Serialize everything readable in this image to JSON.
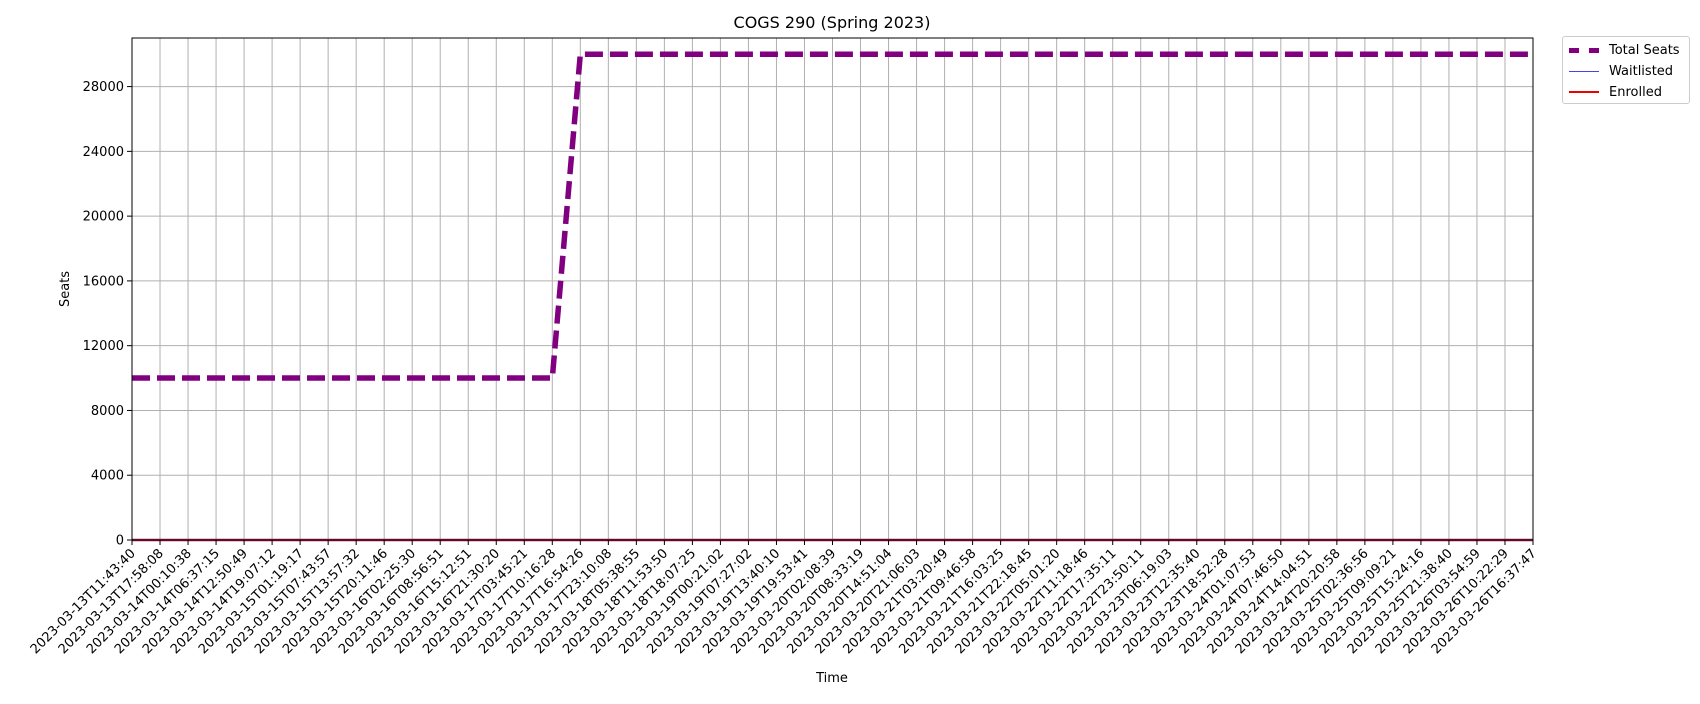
{
  "chart_data": {
    "type": "line",
    "title": "COGS 290 (Spring 2023)",
    "xlabel": "Time",
    "ylabel": "Seats",
    "ylim": [
      0,
      31000
    ],
    "yticks": [
      0,
      4000,
      8000,
      12000,
      16000,
      20000,
      24000,
      28000
    ],
    "grid": true,
    "legend_position": "outside top-right",
    "x": [
      "2023-03-13T11:43:40",
      "2023-03-13T17:58:08",
      "2023-03-14T00:10:38",
      "2023-03-14T06:37:15",
      "2023-03-14T12:50:49",
      "2023-03-14T19:07:12",
      "2023-03-15T01:19:17",
      "2023-03-15T07:43:57",
      "2023-03-15T13:57:32",
      "2023-03-15T20:11:46",
      "2023-03-16T02:25:30",
      "2023-03-16T08:56:51",
      "2023-03-16T15:12:51",
      "2023-03-16T21:30:20",
      "2023-03-17T03:45:21",
      "2023-03-17T10:16:28",
      "2023-03-17T16:54:26",
      "2023-03-17T23:10:08",
      "2023-03-18T05:38:55",
      "2023-03-18T11:53:50",
      "2023-03-18T18:07:25",
      "2023-03-19T00:21:02",
      "2023-03-19T07:27:02",
      "2023-03-19T13:40:10",
      "2023-03-19T19:53:41",
      "2023-03-20T02:08:39",
      "2023-03-20T08:33:19",
      "2023-03-20T14:51:04",
      "2023-03-20T21:06:03",
      "2023-03-21T03:20:49",
      "2023-03-21T09:46:58",
      "2023-03-21T16:03:25",
      "2023-03-21T22:18:45",
      "2023-03-22T05:01:20",
      "2023-03-22T11:18:46",
      "2023-03-22T17:35:11",
      "2023-03-22T23:50:11",
      "2023-03-23T06:19:03",
      "2023-03-23T12:35:40",
      "2023-03-23T18:52:28",
      "2023-03-24T01:07:53",
      "2023-03-24T07:46:50",
      "2023-03-24T14:04:51",
      "2023-03-24T20:20:58",
      "2023-03-25T02:36:56",
      "2023-03-25T09:09:21",
      "2023-03-25T15:24:16",
      "2023-03-25T21:38:40",
      "2023-03-26T03:54:59",
      "2023-03-26T10:22:29",
      "2023-03-26T16:37:47"
    ],
    "series": [
      {
        "name": "Total Seats",
        "color": "#800080",
        "style": "dashed",
        "values": [
          10000,
          10000,
          10000,
          10000,
          10000,
          10000,
          10000,
          10000,
          10000,
          10000,
          10000,
          10000,
          10000,
          10000,
          10000,
          10000,
          30000,
          30000,
          30000,
          30000,
          30000,
          30000,
          30000,
          30000,
          30000,
          30000,
          30000,
          30000,
          30000,
          30000,
          30000,
          30000,
          30000,
          30000,
          30000,
          30000,
          30000,
          30000,
          30000,
          30000,
          30000,
          30000,
          30000,
          30000,
          30000,
          30000,
          30000,
          30000,
          30000,
          30000,
          30000
        ]
      },
      {
        "name": "Waitlisted",
        "color": "#4444ee",
        "style": "solid",
        "values": [
          0,
          0,
          0,
          0,
          0,
          0,
          0,
          0,
          0,
          0,
          0,
          0,
          0,
          0,
          0,
          0,
          0,
          0,
          0,
          0,
          0,
          0,
          0,
          0,
          0,
          0,
          0,
          0,
          0,
          0,
          0,
          0,
          0,
          0,
          0,
          0,
          0,
          0,
          0,
          0,
          0,
          0,
          0,
          0,
          0,
          0,
          0,
          0,
          0,
          0,
          0
        ]
      },
      {
        "name": "Enrolled",
        "color": "#ee0000",
        "style": "solid",
        "values": [
          0,
          0,
          0,
          0,
          0,
          0,
          0,
          0,
          0,
          0,
          0,
          0,
          0,
          0,
          0,
          0,
          0,
          0,
          0,
          0,
          0,
          0,
          0,
          0,
          0,
          0,
          0,
          0,
          0,
          0,
          0,
          0,
          0,
          0,
          0,
          0,
          0,
          0,
          0,
          0,
          0,
          0,
          0,
          0,
          0,
          0,
          0,
          0,
          0,
          0,
          0
        ]
      }
    ]
  }
}
